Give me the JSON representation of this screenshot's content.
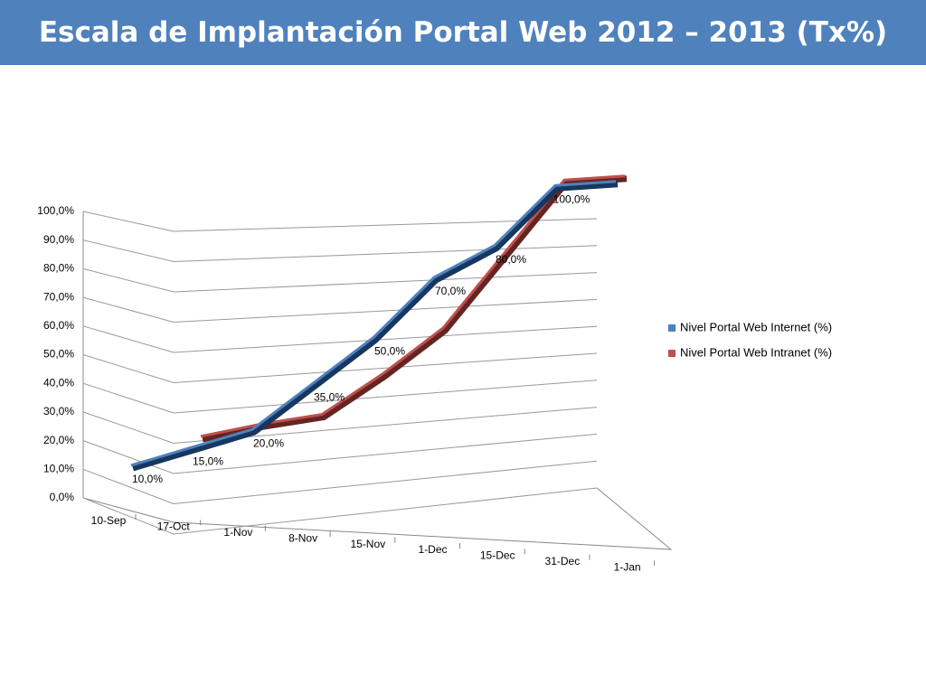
{
  "chart_data": {
    "type": "line",
    "title": "Escala de Implantación Portal Web 2012 – 2013 (Tx%)",
    "categories": [
      "10-Sep",
      "17-Oct",
      "1-Nov",
      "8-Nov",
      "15-Nov",
      "1-Dec",
      "15-Dec",
      "31-Dec",
      "1-Jan"
    ],
    "series": [
      {
        "name": "Nivel Portal Web  Internet (%)",
        "color": "#4f81bd",
        "values": [
          10,
          15,
          20,
          35,
          50,
          70,
          80,
          100,
          100
        ],
        "value_labels": [
          "10,0%",
          "15,0%",
          "20,0%",
          "35,0%",
          "50,0%",
          "70,0%",
          "80,0%",
          "100,0%",
          null
        ]
      },
      {
        "name": "Nivel Portal Web  Intranet (%)",
        "color": "#c0504d",
        "values": [
          null,
          17,
          20,
          22,
          35,
          50,
          75,
          100,
          100
        ]
      }
    ],
    "ylim": [
      0,
      100
    ],
    "yticks": [
      {
        "value": 0,
        "label": "0,0%"
      },
      {
        "value": 10,
        "label": "10,0%"
      },
      {
        "value": 20,
        "label": "20,0%"
      },
      {
        "value": 30,
        "label": "30,0%"
      },
      {
        "value": 40,
        "label": "40,0%"
      },
      {
        "value": 50,
        "label": "50,0%"
      },
      {
        "value": 60,
        "label": "60,0%"
      },
      {
        "value": 70,
        "label": "70,0%"
      },
      {
        "value": 80,
        "label": "80,0%"
      },
      {
        "value": 90,
        "label": "90,0%"
      },
      {
        "value": 100,
        "label": "100,0%"
      }
    ],
    "grid": true,
    "legend": "right"
  }
}
